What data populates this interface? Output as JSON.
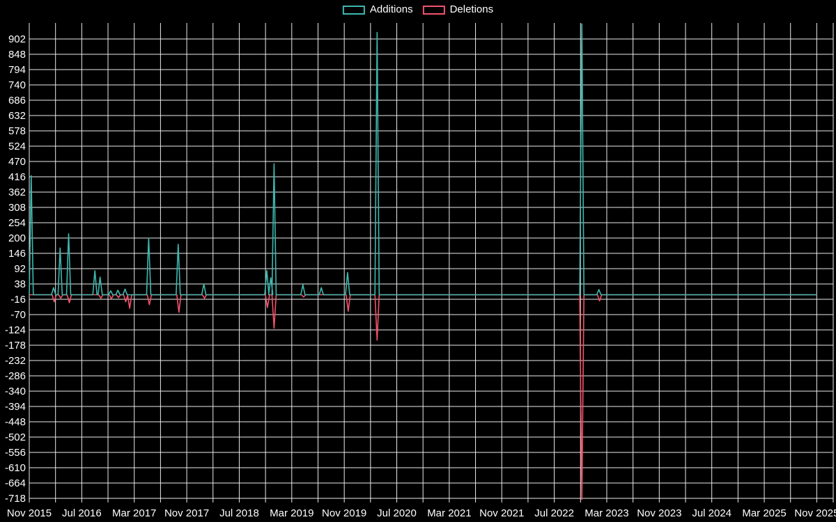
{
  "legend": {
    "items": [
      {
        "label": "Additions",
        "color": "#3fb8af"
      },
      {
        "label": "Deletions",
        "color": "#f4536b"
      }
    ]
  },
  "chart_data": {
    "type": "line",
    "title": "",
    "description": "Weekly code additions and deletions over time (code-frequency style spike chart on black background)",
    "background_color": "#000000",
    "grid_color": "#ebebeb",
    "text_color": "#ffffff",
    "legend_position": "top-center",
    "x_axis": {
      "start_label": "Nov 2015",
      "end_label": "Nov 2025",
      "total_months": 120,
      "gridline_every_months": 4,
      "tick_every_months": 8,
      "tick_labels": [
        "Nov 2015",
        "Jul 2016",
        "Mar 2017",
        "Nov 2017",
        "Jul 2018",
        "Mar 2019",
        "Nov 2019",
        "Jul 2020",
        "Mar 2021",
        "Nov 2021",
        "Jul 2022",
        "Mar 2023",
        "Nov 2023",
        "Jul 2024",
        "Mar 2025",
        "Nov 2025"
      ]
    },
    "y_axis": {
      "tick_values": [
        902,
        848,
        794,
        740,
        686,
        632,
        578,
        524,
        470,
        416,
        362,
        308,
        254,
        200,
        146,
        92,
        38,
        -16,
        -70,
        -124,
        -178,
        -232,
        -286,
        -340,
        -394,
        -448,
        -502,
        -556,
        -610,
        -664,
        -718
      ],
      "tick_step": 54,
      "tick_max": 902,
      "tick_min": -718
    },
    "spike_note": "spikes are [months_after_Nov_2015, peak_value]; both series sit at 0 everywhere else",
    "series": [
      {
        "name": "Additions",
        "color": "#3fb8af",
        "baseline": 0,
        "spikes": [
          [
            0.3,
            420
          ],
          [
            3.7,
            25
          ],
          [
            4.7,
            165
          ],
          [
            6.0,
            215
          ],
          [
            10.0,
            85
          ],
          [
            10.8,
            62
          ],
          [
            12.4,
            14
          ],
          [
            13.5,
            16
          ],
          [
            14.6,
            20
          ],
          [
            18.2,
            200
          ],
          [
            22.7,
            178
          ],
          [
            26.6,
            38
          ],
          [
            36.2,
            85
          ],
          [
            36.8,
            60
          ],
          [
            37.3,
            462
          ],
          [
            41.7,
            35
          ],
          [
            44.5,
            25
          ],
          [
            48.5,
            78
          ],
          [
            53.0,
            925
          ],
          [
            84.2,
            955
          ],
          [
            86.8,
            18
          ]
        ]
      },
      {
        "name": "Deletions",
        "color": "#f4536b",
        "baseline": 0,
        "spikes": [
          [
            3.8,
            -25
          ],
          [
            4.8,
            -12
          ],
          [
            6.1,
            -28
          ],
          [
            10.9,
            -12
          ],
          [
            12.5,
            -14
          ],
          [
            13.6,
            -10
          ],
          [
            14.7,
            -25
          ],
          [
            15.3,
            -48
          ],
          [
            18.3,
            -35
          ],
          [
            22.8,
            -62
          ],
          [
            26.7,
            -12
          ],
          [
            36.3,
            -45
          ],
          [
            37.3,
            -118
          ],
          [
            41.8,
            -8
          ],
          [
            48.6,
            -58
          ],
          [
            53.0,
            -160
          ],
          [
            84.2,
            -722
          ],
          [
            86.9,
            -22
          ]
        ]
      }
    ]
  }
}
